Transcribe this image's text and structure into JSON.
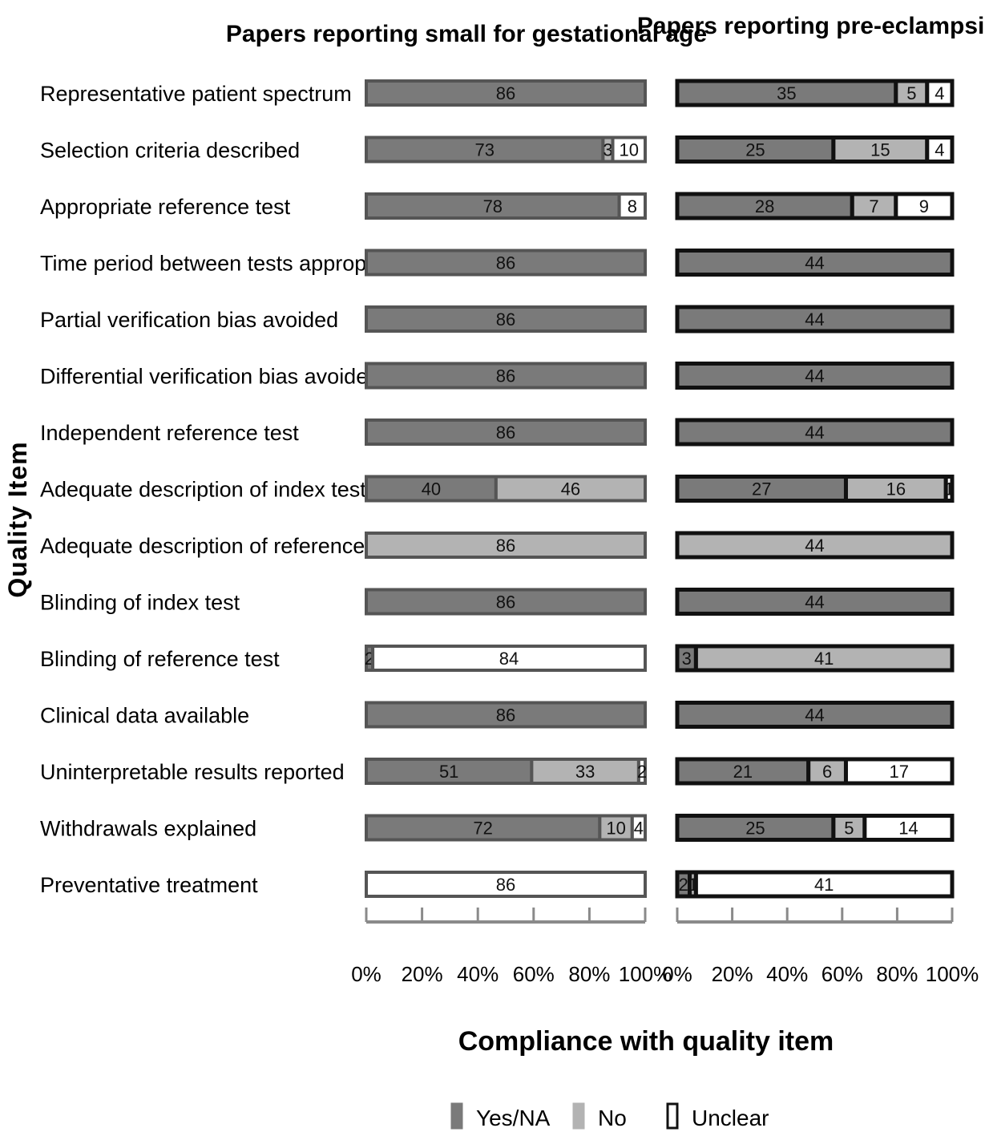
{
  "chart_data": {
    "type": "bar",
    "orientation": "horizontal",
    "stacked": "percent",
    "ylabel": "Quality Item",
    "xlabel": "Compliance with quality item",
    "legend": {
      "placement": "bottom",
      "entries": [
        {
          "name": "Yes/NA",
          "color": "#7a7a7a"
        },
        {
          "name": "No",
          "color": "#b3b3b3"
        },
        {
          "name": "Unclear",
          "color": "#ffffff"
        }
      ]
    },
    "categories": [
      "Representative patient spectrum",
      "Selection criteria described",
      "Appropriate reference test",
      "Time period between tests appropriate",
      "Partial verification bias avoided",
      "Differential verification bias avoided",
      "Independent reference test",
      "Adequate description of index test",
      "Adequate description of reference test",
      "Blinding of index test",
      "Blinding of reference test",
      "Clinical data available",
      "Uninterpretable results reported",
      "Withdrawals explained",
      "Preventative treatment"
    ],
    "xticks": [
      "0%",
      "20%",
      "40%",
      "60%",
      "80%",
      "100%"
    ],
    "panels": [
      {
        "title": "Papers reporting small for gestational age",
        "series": [
          {
            "name": "Yes/NA",
            "values": [
              86,
              73,
              78,
              86,
              86,
              86,
              86,
              40,
              0,
              86,
              2,
              86,
              51,
              72,
              0
            ]
          },
          {
            "name": "No",
            "values": [
              0,
              3,
              0,
              0,
              0,
              0,
              0,
              46,
              86,
              0,
              0,
              0,
              33,
              10,
              0
            ]
          },
          {
            "name": "Unclear",
            "values": [
              0,
              10,
              8,
              0,
              0,
              0,
              0,
              0,
              0,
              0,
              84,
              0,
              2,
              4,
              86
            ]
          }
        ]
      },
      {
        "title": "Papers reporting pre-eclampsia",
        "series": [
          {
            "name": "Yes/NA",
            "values": [
              35,
              25,
              28,
              44,
              44,
              44,
              44,
              27,
              0,
              44,
              3,
              44,
              21,
              25,
              2
            ]
          },
          {
            "name": "No",
            "values": [
              5,
              15,
              7,
              0,
              0,
              0,
              0,
              16,
              44,
              0,
              41,
              0,
              6,
              5,
              1
            ]
          },
          {
            "name": "Unclear",
            "values": [
              4,
              4,
              9,
              0,
              0,
              0,
              0,
              1,
              0,
              0,
              0,
              0,
              17,
              14,
              41
            ]
          }
        ]
      }
    ]
  }
}
